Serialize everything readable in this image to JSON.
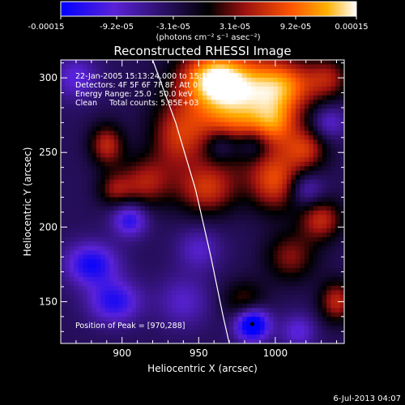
{
  "chart_data": {
    "type": "heatmap",
    "title": "Reconstructed RHESSI Image",
    "xlabel": "Heliocentric X (arcsec)",
    "ylabel": "Heliocentric Y (arcsec)",
    "xlim": [
      860,
      1045
    ],
    "ylim": [
      122,
      312
    ],
    "x_ticks": [
      900,
      950,
      1000
    ],
    "y_ticks": [
      150,
      200,
      250,
      300
    ],
    "colorbar": {
      "ticks": [
        "-0.00015",
        "-9.2e-05",
        "-3.1e-05",
        "3.1e-05",
        "9.2e-05",
        "0.00015"
      ],
      "min": -0.00015,
      "max": 0.00015,
      "unit_label": "(photons cm⁻² s⁻¹ asec⁻²)",
      "colors": [
        "#0000ff",
        "#5a22d8",
        "#000000",
        "#9a1010",
        "#ff5500",
        "#ffb000",
        "#ffffff"
      ]
    },
    "annotations": [
      "22-Jan-2005 15:13:24.000 to 15:17:08.000",
      "Detectors: 4F 5F 6F 7F 8F, Att 0",
      "Energy Range: 25.0 - 50.0 keV",
      "Clean     Total counts: 5.85E+03"
    ],
    "peak_label": "Position of Peak = [970,288]",
    "limb_curve": [
      [
        920,
        312
      ],
      [
        935,
        270
      ],
      [
        948,
        225
      ],
      [
        958,
        180
      ],
      [
        966,
        140
      ],
      [
        970,
        122
      ]
    ],
    "sources": [
      {
        "x": 975,
        "y": 280,
        "sx": 25,
        "sy": 25,
        "v": 0.00015
      },
      {
        "x": 960,
        "y": 300,
        "sx": 15,
        "sy": 12,
        "v": 0.00012
      },
      {
        "x": 1005,
        "y": 295,
        "sx": 15,
        "sy": 12,
        "v": 0.0001
      },
      {
        "x": 1035,
        "y": 300,
        "sx": 10,
        "sy": 10,
        "v": 7e-05
      },
      {
        "x": 1000,
        "y": 230,
        "sx": 12,
        "sy": 14,
        "v": 0.0001
      },
      {
        "x": 1020,
        "y": 252,
        "sx": 10,
        "sy": 10,
        "v": 8e-05
      },
      {
        "x": 1030,
        "y": 205,
        "sx": 10,
        "sy": 10,
        "v": 9e-05
      },
      {
        "x": 1010,
        "y": 180,
        "sx": 12,
        "sy": 12,
        "v": 7e-05
      },
      {
        "x": 1040,
        "y": 150,
        "sx": 8,
        "sy": 10,
        "v": 9e-05
      },
      {
        "x": 980,
        "y": 150,
        "sx": 10,
        "sy": 10,
        "v": 6e-05
      },
      {
        "x": 955,
        "y": 225,
        "sx": 14,
        "sy": 12,
        "v": 9e-05
      },
      {
        "x": 935,
        "y": 260,
        "sx": 12,
        "sy": 16,
        "v": 7e-05
      },
      {
        "x": 915,
        "y": 230,
        "sx": 12,
        "sy": 12,
        "v": 8e-05
      },
      {
        "x": 890,
        "y": 255,
        "sx": 8,
        "sy": 10,
        "v": 9e-05
      },
      {
        "x": 895,
        "y": 225,
        "sx": 8,
        "sy": 8,
        "v": 6e-05
      },
      {
        "x": 1000,
        "y": 270,
        "sx": 10,
        "sy": 10,
        "v": 6e-05
      },
      {
        "x": 985,
        "y": 135,
        "sx": 8,
        "sy": 8,
        "v": -0.00015
      },
      {
        "x": 880,
        "y": 175,
        "sx": 12,
        "sy": 10,
        "v": -0.0001
      },
      {
        "x": 895,
        "y": 150,
        "sx": 12,
        "sy": 10,
        "v": -9e-05
      },
      {
        "x": 905,
        "y": 205,
        "sx": 8,
        "sy": 8,
        "v": -9e-05
      },
      {
        "x": 965,
        "y": 255,
        "sx": 8,
        "sy": 8,
        "v": -7e-05
      },
      {
        "x": 985,
        "y": 255,
        "sx": 8,
        "sy": 8,
        "v": -7e-05
      },
      {
        "x": 1020,
        "y": 225,
        "sx": 8,
        "sy": 8,
        "v": -6e-05
      },
      {
        "x": 870,
        "y": 300,
        "sx": 10,
        "sy": 10,
        "v": -6e-05
      },
      {
        "x": 1035,
        "y": 270,
        "sx": 8,
        "sy": 8,
        "v": -6e-05
      },
      {
        "x": 950,
        "y": 185,
        "sx": 10,
        "sy": 10,
        "v": -5e-05
      },
      {
        "x": 1015,
        "y": 130,
        "sx": 8,
        "sy": 8,
        "v": -6e-05
      },
      {
        "x": 940,
        "y": 150,
        "sx": 12,
        "sy": 12,
        "v": -5e-05
      }
    ]
  },
  "footer": {
    "date": "6-Jul-2013 04:07"
  }
}
